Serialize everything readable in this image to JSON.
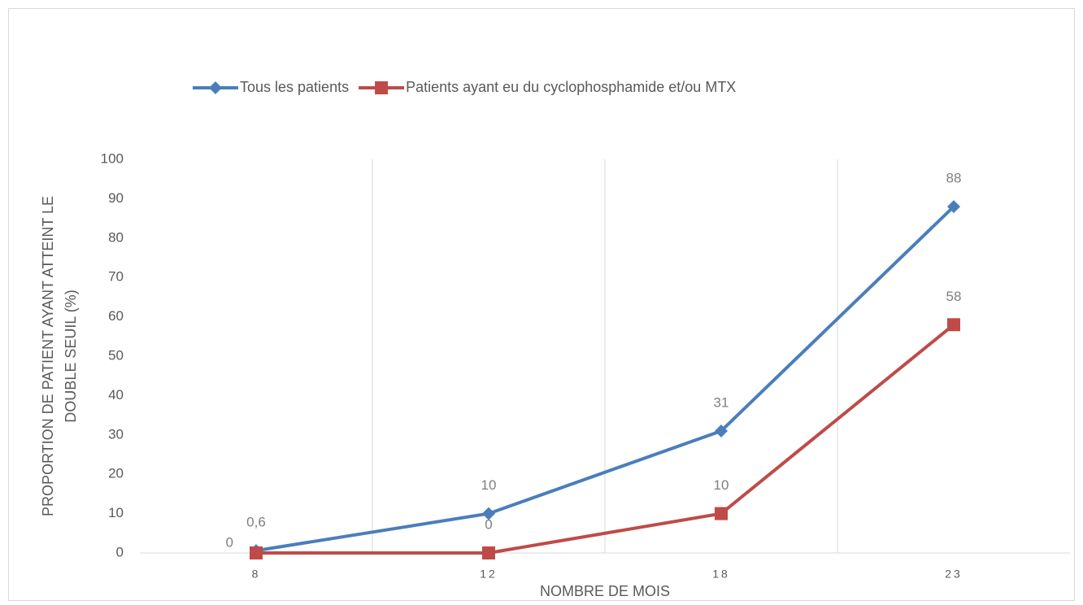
{
  "chart_data": {
    "type": "line",
    "xlabel": "NOMBRE DE MOIS",
    "ylabel": [
      "PROPORTION DE PATIENT AYANT ATTEINT LE",
      "DOUBLE SEUIL (%)"
    ],
    "categories": [
      "8",
      "12",
      "18",
      "23"
    ],
    "series": [
      {
        "name": "Tous les patients",
        "color": "#4a7ebb",
        "marker": "diamond",
        "values": [
          0.6,
          10,
          31,
          88
        ],
        "value_labels": [
          "0,6",
          "10",
          "31",
          "88"
        ]
      },
      {
        "name": "Patients ayant eu du cyclophosphamide et/ou MTX",
        "color": "#be4b48",
        "marker": "square",
        "values": [
          0,
          0,
          10,
          58
        ]
      }
    ],
    "ylim": [
      0,
      100
    ],
    "yticks": [
      0,
      10,
      20,
      30,
      40,
      50,
      60,
      70,
      80,
      90,
      100
    ],
    "legend": "top",
    "grid": "vertical"
  }
}
